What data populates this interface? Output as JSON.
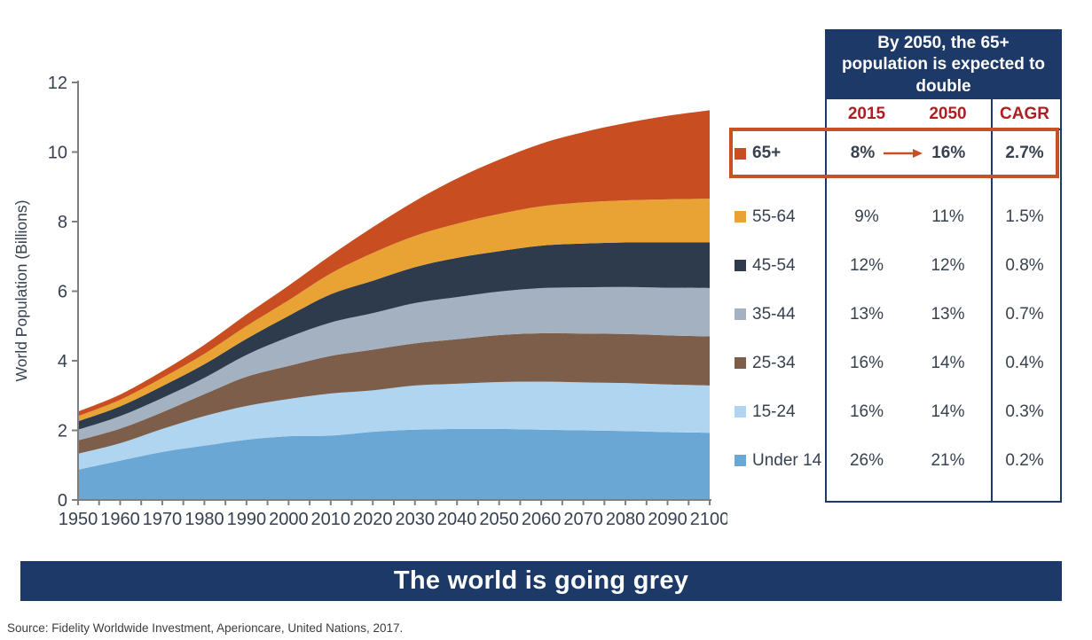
{
  "chart_data": {
    "type": "area",
    "stacked": true,
    "title": "",
    "xlabel": "",
    "ylabel": "World Population (Billions)",
    "ylim": [
      0,
      12
    ],
    "yticks": [
      0,
      2,
      4,
      6,
      8,
      10,
      12
    ],
    "xlim": [
      1950,
      2100
    ],
    "xtick_minor_step": 5,
    "xtick_labels": [
      1950,
      1960,
      1970,
      1980,
      1990,
      2000,
      2010,
      2020,
      2030,
      2040,
      2050,
      2060,
      2070,
      2080,
      2090,
      2100
    ],
    "grid": false,
    "legend_position": "right-table",
    "x": [
      1950,
      1960,
      1970,
      1980,
      1990,
      2000,
      2010,
      2020,
      2030,
      2040,
      2050,
      2060,
      2070,
      2080,
      2090,
      2100
    ],
    "series": [
      {
        "name": "Under 14",
        "color": "#6BA7D4",
        "values": [
          0.87,
          1.13,
          1.38,
          1.56,
          1.73,
          1.83,
          1.85,
          1.96,
          2.02,
          2.04,
          2.04,
          2.02,
          2.0,
          1.98,
          1.95,
          1.93
        ]
      },
      {
        "name": "15-24",
        "color": "#AFD5F1",
        "values": [
          0.46,
          0.5,
          0.66,
          0.85,
          0.97,
          1.07,
          1.21,
          1.19,
          1.27,
          1.3,
          1.35,
          1.38,
          1.38,
          1.38,
          1.37,
          1.36
        ]
      },
      {
        "name": "25-34",
        "color": "#7C5E4A",
        "values": [
          0.38,
          0.42,
          0.48,
          0.63,
          0.84,
          0.95,
          1.08,
          1.17,
          1.21,
          1.28,
          1.35,
          1.39,
          1.4,
          1.41,
          1.41,
          1.41
        ]
      },
      {
        "name": "35-44",
        "color": "#A3B1C0",
        "values": [
          0.31,
          0.36,
          0.41,
          0.47,
          0.63,
          0.83,
          0.96,
          1.05,
          1.16,
          1.21,
          1.25,
          1.3,
          1.33,
          1.35,
          1.37,
          1.39
        ]
      },
      {
        "name": "45-54",
        "color": "#2E3B4C",
        "values": [
          0.24,
          0.28,
          0.34,
          0.39,
          0.46,
          0.61,
          0.81,
          0.93,
          1.03,
          1.13,
          1.16,
          1.22,
          1.26,
          1.28,
          1.3,
          1.31
        ]
      },
      {
        "name": "55-64",
        "color": "#E8A334",
        "values": [
          0.15,
          0.19,
          0.24,
          0.3,
          0.37,
          0.45,
          0.6,
          0.8,
          0.9,
          0.98,
          1.07,
          1.13,
          1.18,
          1.21,
          1.24,
          1.26
        ]
      },
      {
        "name": "65+",
        "color": "#C84D20",
        "values": [
          0.13,
          0.15,
          0.19,
          0.26,
          0.33,
          0.42,
          0.52,
          0.74,
          1.0,
          1.3,
          1.56,
          1.8,
          2.02,
          2.22,
          2.4,
          2.54
        ]
      }
    ]
  },
  "table": {
    "header_title": "By 2050, the 65+ population is expected to double",
    "columns": [
      "2015",
      "2050",
      "CAGR"
    ],
    "rows": [
      {
        "key": "65plus",
        "label": "65+",
        "color": "#C84D20",
        "v2015": "8%",
        "v2050": "16%",
        "cagr": "2.7%",
        "highlight": true
      },
      {
        "key": "55-64",
        "label": "55-64",
        "color": "#E8A334",
        "v2015": "9%",
        "v2050": "11%",
        "cagr": "1.5%",
        "highlight": false
      },
      {
        "key": "45-54",
        "label": "45-54",
        "color": "#2E3B4C",
        "v2015": "12%",
        "v2050": "12%",
        "cagr": "0.8%",
        "highlight": false
      },
      {
        "key": "35-44",
        "label": "35-44",
        "color": "#A3B1C0",
        "v2015": "13%",
        "v2050": "13%",
        "cagr": "0.7%",
        "highlight": false
      },
      {
        "key": "25-34",
        "label": "25-34",
        "color": "#7C5E4A",
        "v2015": "16%",
        "v2050": "14%",
        "cagr": "0.4%",
        "highlight": false
      },
      {
        "key": "15-24",
        "label": "15-24",
        "color": "#AFD5F1",
        "v2015": "16%",
        "v2050": "14%",
        "cagr": "0.3%",
        "highlight": false
      },
      {
        "key": "under14",
        "label": "Under 14",
        "color": "#6BA7D4",
        "v2015": "26%",
        "v2050": "21%",
        "cagr": "0.2%",
        "highlight": false
      }
    ]
  },
  "banner": {
    "title": "The world is going grey"
  },
  "source": {
    "text": "Source: Fidelity Worldwide Investment, Aperioncare, United Nations, 2017."
  },
  "colors": {
    "navy": "#1C3968",
    "header_red": "#B01E23",
    "highlight_orange": "#C94F26",
    "axis_grey": "#7F7F7F",
    "text_slate": "#37414F"
  }
}
